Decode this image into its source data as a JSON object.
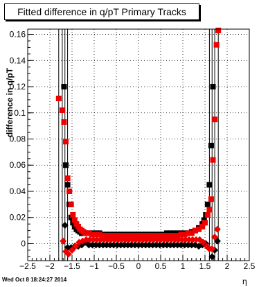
{
  "title": "Fitted difference in q/pT  Primary Tracks",
  "footer": "Wed Oct  8 18:24:27 2014",
  "chart_data": {
    "type": "scatter",
    "title": "Fitted difference in q/pT  Primary Tracks",
    "xlabel": "η",
    "ylabel": "difference in q/pT",
    "xlim": [
      -2.5,
      2.5
    ],
    "ylim": [
      -0.013,
      0.164
    ],
    "xticks": [
      -2.5,
      -2,
      -1.5,
      -1,
      -0.5,
      0,
      0.5,
      1,
      1.5,
      2,
      2.5
    ],
    "xtick_labels": [
      "−2.5",
      "−2",
      "−1.5",
      "−1",
      "−0.5",
      "0",
      "0.5",
      "1",
      "1.5",
      "2",
      "2.5"
    ],
    "yticks": [
      0,
      0.02,
      0.04,
      0.06,
      0.08,
      0.1,
      0.12,
      0.14,
      0.16
    ],
    "ytick_labels": [
      "0",
      "0.02",
      "0.04",
      "0.06",
      "0.08",
      "0.1",
      "0.12",
      "0.14",
      "0.16"
    ],
    "grid": true,
    "colors": {
      "black": "#000000",
      "red": "#ee0000"
    },
    "series": [
      {
        "color": "#000000",
        "marker": "square",
        "x": [
          -1.68,
          -1.64,
          -1.6,
          -1.56,
          -1.52,
          -1.48,
          -1.44,
          -1.4,
          -1.36,
          -1.32,
          -1.28,
          -1.24,
          -1.2,
          -1.12,
          -1.04,
          -0.96,
          -0.88,
          -0.8,
          -0.72,
          -0.64,
          -0.56,
          -0.48,
          -0.4,
          -0.32,
          -0.24,
          -0.16,
          -0.08,
          0.0,
          0.08,
          0.16,
          0.24,
          0.32,
          0.4,
          0.48,
          0.56,
          0.64,
          0.72,
          0.8,
          0.88,
          0.96,
          1.04,
          1.12,
          1.2,
          1.28,
          1.36,
          1.44,
          1.48,
          1.52,
          1.56,
          1.6,
          1.64,
          1.68
        ],
        "y": [
          0.12,
          0.06,
          0.045,
          0.03,
          0.02,
          0.016,
          0.013,
          0.011,
          0.01,
          0.009,
          0.008,
          0.008,
          0.008,
          0.008,
          0.008,
          0.008,
          0.008,
          0.007,
          0.007,
          0.007,
          0.007,
          0.007,
          0.007,
          0.007,
          0.007,
          0.007,
          0.007,
          0.007,
          0.007,
          0.007,
          0.007,
          0.007,
          0.007,
          0.007,
          0.007,
          0.008,
          0.008,
          0.008,
          0.008,
          0.008,
          0.008,
          0.008,
          0.009,
          0.01,
          0.012,
          0.015,
          0.018,
          0.022,
          0.03,
          0.045,
          0.075,
          0.12
        ]
      },
      {
        "color": "#ee0000",
        "marker": "square",
        "x": [
          -1.8,
          -1.72,
          -1.68,
          -1.64,
          -1.6,
          -1.56,
          -1.52,
          -1.48,
          -1.44,
          -1.4,
          -1.36,
          -1.32,
          -1.28,
          -1.24,
          -1.2,
          -1.12,
          -1.04,
          -0.96,
          -0.88,
          -0.8,
          -0.72,
          -0.64,
          -0.56,
          -0.48,
          -0.4,
          -0.32,
          -0.24,
          -0.16,
          -0.08,
          0.0,
          0.08,
          0.16,
          0.24,
          0.32,
          0.4,
          0.48,
          0.56,
          0.64,
          0.72,
          0.8,
          0.88,
          0.96,
          1.04,
          1.12,
          1.2,
          1.28,
          1.36,
          1.44,
          1.5,
          1.56,
          1.6,
          1.64,
          1.68,
          1.72,
          1.76,
          1.8
        ],
        "y": [
          0.111,
          0.102,
          0.093,
          0.078,
          0.05,
          0.04,
          0.03,
          0.022,
          0.018,
          0.015,
          0.013,
          0.011,
          0.01,
          0.009,
          0.008,
          0.008,
          0.007,
          0.007,
          0.007,
          0.006,
          0.006,
          0.006,
          0.006,
          0.006,
          0.006,
          0.006,
          0.006,
          0.006,
          0.006,
          0.006,
          0.006,
          0.006,
          0.006,
          0.006,
          0.006,
          0.006,
          0.006,
          0.006,
          0.006,
          0.006,
          0.006,
          0.007,
          0.007,
          0.008,
          0.008,
          0.01,
          0.011,
          0.013,
          0.016,
          0.022,
          0.026,
          0.034,
          0.064,
          0.095,
          0.152,
          0.163
        ]
      },
      {
        "color": "#000000",
        "marker": "diamond",
        "x": [
          -1.66,
          -1.6,
          -1.52,
          -1.44,
          -1.36,
          -1.28,
          -1.2,
          -1.12,
          -1.04,
          -0.96,
          -0.88,
          -0.8,
          -0.72,
          -0.64,
          -0.56,
          -0.48,
          -0.4,
          -0.32,
          -0.24,
          -0.16,
          -0.08,
          0.0,
          0.08,
          0.16,
          0.24,
          0.32,
          0.4,
          0.48,
          0.56,
          0.64,
          0.72,
          0.8,
          0.88,
          0.96,
          1.04,
          1.12,
          1.2,
          1.28,
          1.36,
          1.44,
          1.52,
          1.6,
          1.66,
          1.72,
          1.78
        ],
        "y": [
          0.014,
          -0.003,
          -0.003,
          -0.002,
          -0.002,
          -0.001,
          0.001,
          -0.001,
          -0.001,
          -0.001,
          -0.001,
          -0.001,
          -0.001,
          -0.001,
          -0.001,
          -0.001,
          -0.001,
          -0.001,
          -0.001,
          -0.001,
          -0.001,
          -0.001,
          -0.001,
          -0.001,
          -0.001,
          -0.001,
          -0.001,
          -0.001,
          -0.001,
          -0.001,
          -0.001,
          -0.001,
          -0.001,
          -0.001,
          -0.001,
          -0.001,
          -0.001,
          -0.001,
          -0.002,
          -0.001,
          0.0,
          -0.004,
          -0.01,
          -0.005,
          0.002
        ]
      },
      {
        "color": "#ee0000",
        "marker": "diamond",
        "x": [
          -1.7,
          -1.64,
          -1.58,
          -1.5,
          -1.42,
          -1.34,
          -1.26,
          -1.18,
          -1.1,
          -1.02,
          -0.94,
          -0.86,
          -0.78,
          -0.7,
          -0.62,
          -0.54,
          -0.46,
          -0.38,
          -0.3,
          -0.22,
          -0.14,
          -0.06,
          0.02,
          0.1,
          0.18,
          0.26,
          0.34,
          0.42,
          0.5,
          0.58,
          0.66,
          0.74,
          0.82,
          0.9,
          0.98,
          1.06,
          1.14,
          1.22,
          1.3,
          1.38,
          1.46,
          1.54,
          1.6,
          1.66,
          1.72,
          1.78
        ],
        "y": [
          0.002,
          -0.006,
          -0.008,
          -0.005,
          -0.002,
          0.001,
          0.002,
          0.003,
          0.003,
          0.003,
          0.003,
          0.003,
          0.003,
          0.003,
          0.003,
          0.003,
          0.003,
          0.003,
          0.003,
          0.003,
          0.003,
          0.003,
          0.003,
          0.003,
          0.003,
          0.003,
          0.003,
          0.003,
          0.003,
          0.003,
          0.003,
          0.003,
          0.003,
          0.003,
          0.003,
          0.003,
          0.003,
          0.003,
          0.003,
          0.003,
          0.001,
          -0.002,
          -0.004,
          -0.004,
          0.005,
          0.011
        ]
      }
    ],
    "vlines": [
      -1.8,
      -1.72,
      -1.66,
      -1.6,
      1.6,
      1.66,
      1.72,
      1.8
    ]
  }
}
